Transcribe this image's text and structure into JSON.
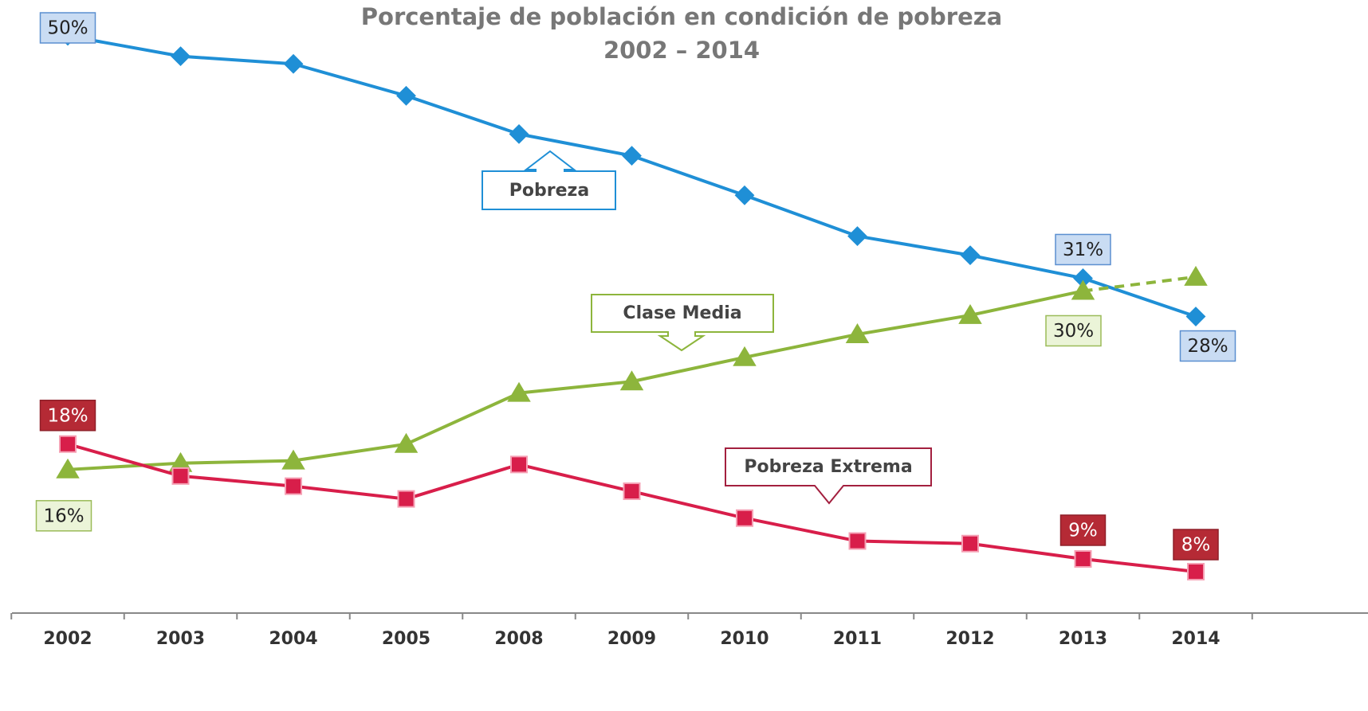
{
  "chart_data": {
    "type": "line",
    "title": "Porcentaje de población en condición de pobreza 2002 – 2014",
    "categories": [
      "2002",
      "2003",
      "2004",
      "2005",
      "2008",
      "2009",
      "2010",
      "2011",
      "2012",
      "2013",
      "2014"
    ],
    "series": [
      {
        "name": "Pobreza",
        "color": "#1f8fd6",
        "marker": "diamond",
        "values": [
          50,
          48.4,
          47.8,
          45.3,
          42.3,
          40.6,
          37.5,
          34.3,
          32.8,
          31,
          28
        ],
        "value_labels": [
          "50%",
          null,
          null,
          null,
          null,
          null,
          null,
          null,
          null,
          "31%",
          "28%"
        ]
      },
      {
        "name": "Clase Media",
        "color": "#8db53c",
        "marker": "triangle",
        "values": [
          16,
          16.5,
          16.7,
          18,
          22,
          22.9,
          24.8,
          26.6,
          28.1,
          30,
          31.1
        ],
        "value_labels": [
          "16%",
          null,
          null,
          null,
          null,
          null,
          null,
          null,
          null,
          "30%",
          null
        ]
      },
      {
        "name": "Pobreza Extrema",
        "color": "#d81e4a",
        "marker": "square",
        "values": [
          18,
          15.5,
          14.7,
          13.7,
          16.4,
          14.3,
          12.2,
          10.4,
          10.2,
          9,
          8
        ],
        "value_labels": [
          "18%",
          null,
          null,
          null,
          null,
          null,
          null,
          null,
          null,
          "9%",
          "8%"
        ]
      }
    ]
  }
}
